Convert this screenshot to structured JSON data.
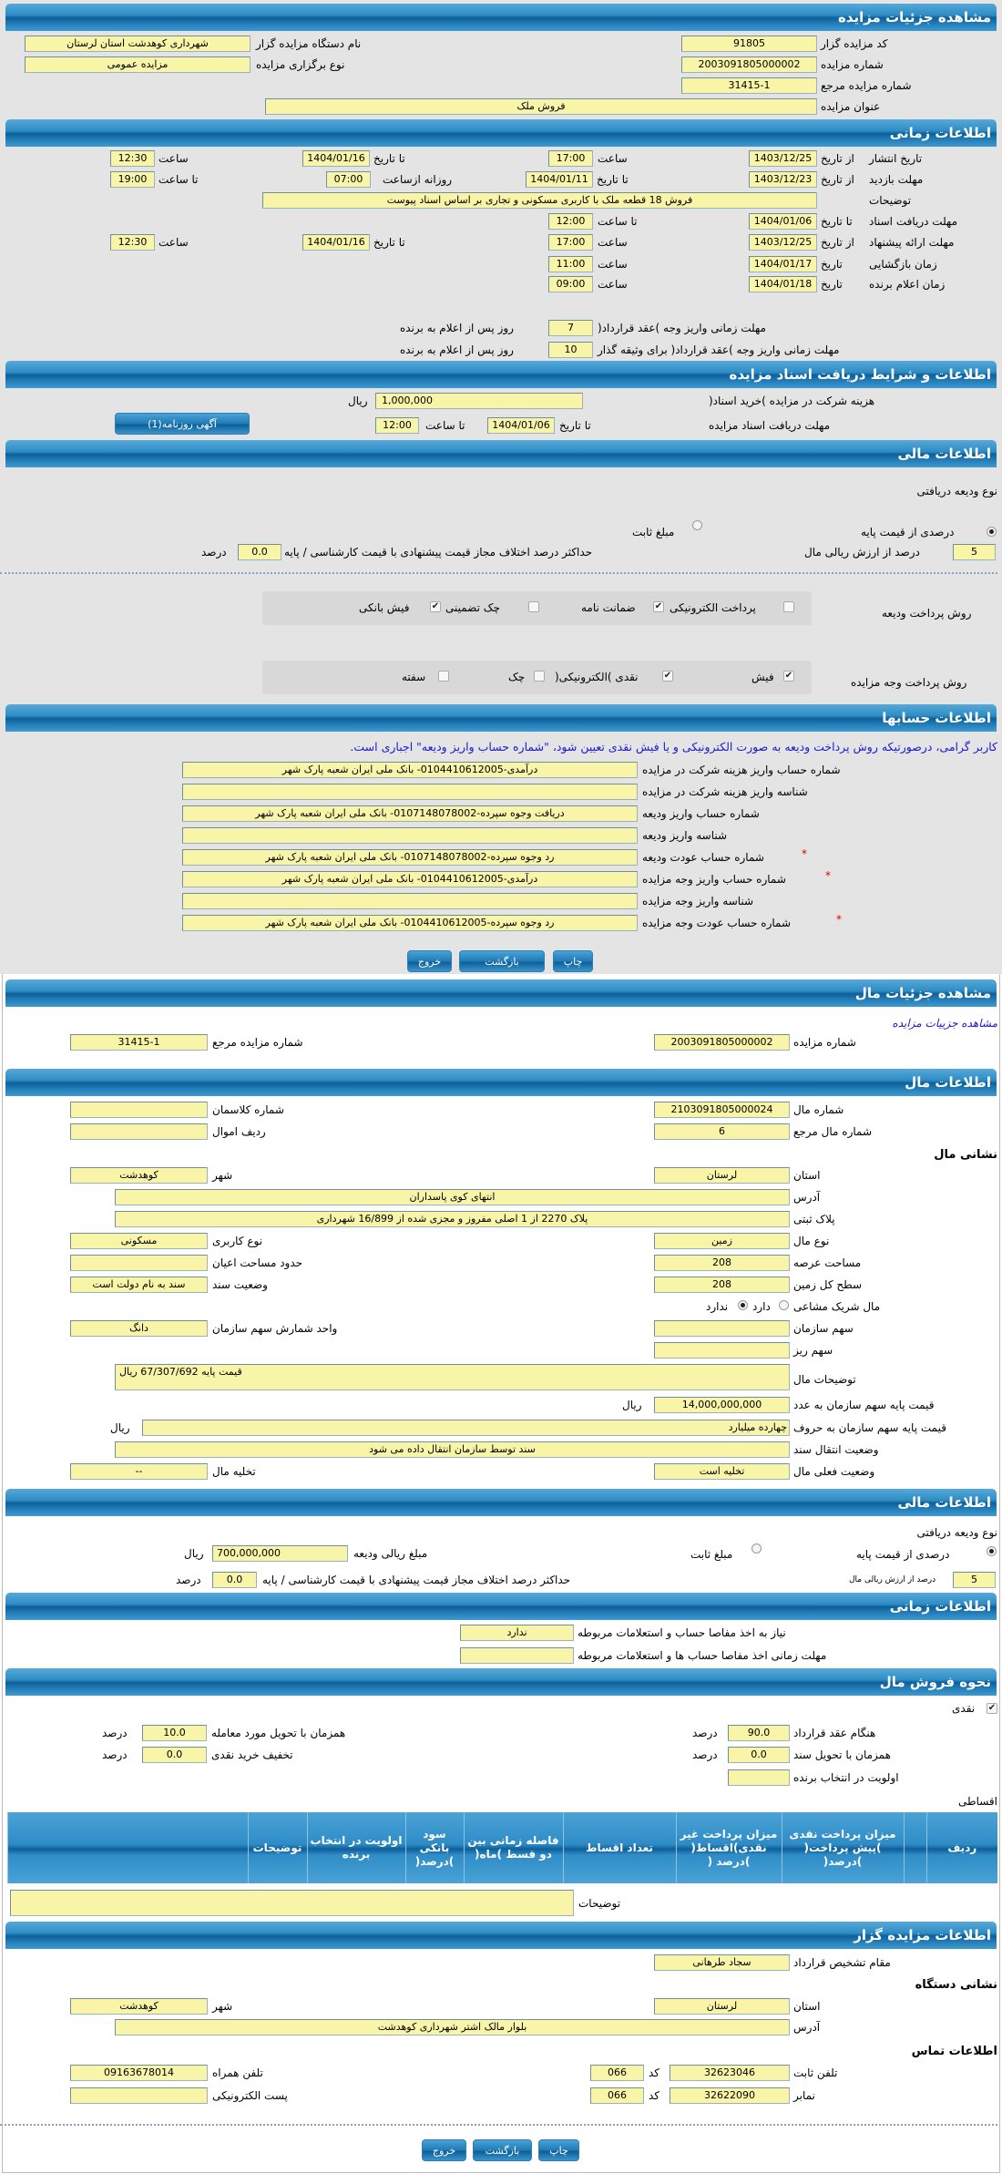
{
  "colors": {
    "header": "#1f78b3",
    "field": "#f8f4a8",
    "background": "#e4e4e4",
    "note": "#1a1ad0"
  },
  "s1": {
    "title": "مشاهده جزئیات مزایده",
    "code_label": "کد مزایده گزار",
    "code": "91805",
    "org_label": "نام دستگاه مزایده گزار",
    "org": "شهرداری کوهدشت استان لرستان",
    "num_label": "شماره مزایده",
    "num": "2003091805000002",
    "type_label": "نوع برگزاری مزایده",
    "type": "مزایده عمومی",
    "ref_label": "شماره مزایده مرجع",
    "ref": "31415-1",
    "subject_label": "عنوان مزایده",
    "subject": "فروش ملک"
  },
  "time": {
    "title": "اطلاعات زمانی",
    "from_date": "از تاریخ",
    "to_date": "تا تاریخ",
    "hour": "ساعت",
    "to_hour": "تا ساعت",
    "date": "تاریخ",
    "daily_from": "روزانه ازساعت",
    "publish_label": "تاریخ انتشار",
    "publish_from": "1403/12/25",
    "publish_from_time": "17:00",
    "publish_to": "1404/01/16",
    "publish_to_time": "12:30",
    "visit_label": "مهلت بازدید",
    "visit_from": "1403/12/23",
    "visit_to": "1404/01/11",
    "visit_daily_from": "07:00",
    "visit_daily_to": "19:00",
    "desc_label": "توضیحات",
    "desc": "فروش 18 قطعه ملک با کاربری مسکونی و تجاری بر اساس اسناد پیوست",
    "docs_label": "مهلت دریافت اسناد",
    "docs_to": "1404/01/06",
    "docs_to_time": "12:00",
    "offer_label": "مهلت ارائه پیشنهاد",
    "offer_from": "1403/12/25",
    "offer_from_time": "17:00",
    "offer_to": "1404/01/16",
    "offer_to_time": "12:30",
    "open_label": "زمان بازگشایی",
    "open_date": "1404/01/17",
    "open_time": "11:00",
    "winner_label": "زمان اعلام برنده",
    "winner_date": "1404/01/18",
    "winner_time": "09:00",
    "pay1_label": "مهلت زمانی واریز وجه )عقد قرارداد(",
    "pay1": "7",
    "pay2_label": "مهلت زمانی واریز وجه )عقد قرارداد( برای وثیقه گذار",
    "pay2": "10",
    "days_suffix": "روز پس از اعلام به برنده"
  },
  "docs": {
    "title": "اطلاعات و شرایط دریافت اسناد مزایده",
    "fee_label": "هزینه شرکت در مزایده )خرید اسناد(",
    "fee": "1,000,000",
    "rial": "ریال",
    "deadline_label": "مهلت دریافت اسناد مزایده",
    "to_date": "تا تاریخ",
    "date": "1404/01/06",
    "to_hour": "تا ساعت",
    "time": "12:00",
    "ad_button": "آگهی روزنامه(1)"
  },
  "fin": {
    "title": "اطلاعات مالی",
    "deposit_type": "نوع ودیعه دریافتی",
    "opt_percent": "درصدی از قیمت پایه",
    "opt_fixed": "مبلغ ثابت",
    "percent": "5",
    "percent_label": "درصد از ارزش ریالی مال",
    "max_diff_label": "حداکثر درصد اختلاف مجاز قیمت پیشنهادی با قیمت کارشناسی / پایه",
    "max_diff": "0.0",
    "percent_word": "درصد",
    "deposit_pay_label": "روش پرداخت ودیعه",
    "dp": [
      {
        "label": "پرداخت الکترونیکی",
        "checked": false
      },
      {
        "label": "ضمانت نامه",
        "checked": true
      },
      {
        "label": "چک تضمینی",
        "checked": false
      },
      {
        "label": "فیش بانکی",
        "checked": true
      }
    ],
    "auction_pay_label": "روش پرداخت وجه مزایده",
    "ap": [
      {
        "label": "فیش",
        "checked": true
      },
      {
        "label": "نقدی )الکترونیکی(",
        "checked": true
      },
      {
        "label": "چک",
        "checked": false
      },
      {
        "label": "سفته",
        "checked": false
      }
    ]
  },
  "acc": {
    "title": "اطلاعات حسابها",
    "note": "کاربر گرامی، درصورتیکه روش پرداخت ودیعه به صورت الکترونیکی و یا فیش نقدی تعیین شود، \"شماره حساب واریز ودیعه\" اجباری است.",
    "rows": [
      {
        "label": "شماره حساب واریز هزینه شرکت در مزایده",
        "value": "درآمدی-0104410612005- بانک ملی ایران شعبه پارک شهر"
      },
      {
        "label": "شناسه واریز هزینه شرکت در مزایده",
        "value": ""
      },
      {
        "label": "شماره حساب واریز ودیعه",
        "value": "دریافت وجوه سپرده-0107148078002- بانک ملی ایران شعبه پارک شهر"
      },
      {
        "label": "شناسه واریز ودیعه",
        "value": ""
      },
      {
        "label": "شماره حساب عودت ودیعه",
        "value": "رد وجوه سپرده-0107148078002- بانک ملی ایران شعبه پارک شهر"
      },
      {
        "label": "شماره حساب واریز وجه مزایده",
        "value": "درآمدی-0104410612005- بانک ملی ایران شعبه پارک شهر"
      },
      {
        "label": "شناسه واریز وجه مزایده",
        "value": ""
      },
      {
        "label": "شماره حساب عودت وجه مزایده",
        "value": "رد وجوه سپرده-0104410612005- بانک ملی ایران شعبه پارک شهر"
      }
    ],
    "required": "*",
    "print": "چاپ",
    "back": "بازگشت",
    "exit": "خروج"
  },
  "item": {
    "title": "مشاهده جزئیات مال",
    "link": "مشاهده جزییات مزایده",
    "num_label": "شماره مزایده",
    "num": "2003091805000002",
    "ref_label": "شماره مزایده مرجع",
    "ref": "31415-1",
    "info_title": "اطلاعات مال",
    "item_no_label": "شماره مال",
    "item_no": "2103091805000024",
    "class_label": "شماره کلاسمان",
    "class": "",
    "item_ref_label": "شماره مال مرجع",
    "item_ref": "6",
    "row_label": "ردیف اموال",
    "row": "",
    "address_title": "نشانی مال",
    "province_label": "استان",
    "province": "لرستان",
    "city_label": "شهر",
    "city": "کوهدشت",
    "address_label": "آدرس",
    "address": "انتهای کوی پاسداران",
    "plate_label": "پلاک ثبتی",
    "plate": "پلاک 2270 از 1 اصلی مفروز و مجزی شده از  16/899 شهرداری",
    "kind_label": "نوع مال",
    "kind": "زمین",
    "usage_label": "نوع کاربری",
    "usage": "مسکونی",
    "area_label": "مساحت عرصه",
    "area": "208",
    "building_label": "حدود مساحت اعیان",
    "building": "",
    "land_label": "سطح کل زمین",
    "land": "208",
    "deed_label": "وضعیت سند",
    "deed": "سند به نام دولت است",
    "shared_label": "مال شریک مشاعی",
    "has": "دارد",
    "has_not": "ندارد",
    "share_label": "سهم سازمان",
    "share": "",
    "share_unit_label": "واحد شمارش سهم سازمان",
    "share_unit": "دانگ",
    "sub_share_label": "سهم ریز",
    "sub_share": "",
    "desc_label": "توضیحات مال",
    "desc": "قیمت پایه 67/307/692 ریال",
    "price_num_label": "قیمت پایه سهم سازمان به عدد",
    "price_num": "14,000,000,000",
    "rial": "ریال",
    "price_words_label": "قیمت پایه سهم سازمان به حروف",
    "price_words": "چهارده میلیارد",
    "transfer_label": "وضعیت انتقال سند",
    "transfer": "سند توسط سازمان انتقال داده می شود",
    "status_label": "وضعیت فعلی مال",
    "status": "تخلیه است",
    "evac_label": "تخلیه مال",
    "evac": "--"
  },
  "ifin": {
    "title": "اطلاعات مالی",
    "deposit_type": "نوع ودیعه دریافتی",
    "opt_percent": "درصدی از قیمت پایه",
    "opt_fixed": "مبلغ ثابت",
    "amount_label": "مبلغ ریالی ودیعه",
    "amount": "700,000,000",
    "rial": "ریال",
    "percent": "5",
    "percent_label": "درصد از ارزش ریالی مال",
    "max_diff_label": "حداکثر درصد اختلاف مجاز قیمت پیشنهادی با قیمت کارشناسی / پایه",
    "max_diff": "0.0",
    "percent_word": "درصد"
  },
  "itime": {
    "title": "اطلاعات زمانی",
    "need_label": "نیاز به اخذ مفاصا حساب و استعلامات مربوطه",
    "need": "ندارد",
    "deadline_label": "مهلت زمانی اخذ مفاصا حساب ها و استعلامات مربوطه",
    "deadline": ""
  },
  "sale": {
    "title": "نحوه فروش مال",
    "cash": "نقدی",
    "contract_label": "هنگام عقد قرارداد",
    "contract": "90.0",
    "deed_label": "همزمان با تحویل سند",
    "deed": "0.0",
    "priority_label": "اولویت در انتخاب برنده",
    "priority": "",
    "delivery_label": "همزمان با تحویل مورد معامله",
    "delivery": "10.0",
    "discount_label": "تخفیف خرید نقدی",
    "discount": "0.0",
    "percent_word": "درصد",
    "installments": "اقساطی",
    "columns": [
      "ردیف",
      "",
      "میزان پرداخت نقدی )پیش پرداخت( )درصد(",
      "میزان پرداخت غیر نقدی)اقساط( )درصد (",
      "تعداد اقساط",
      "فاصله زمانی بین دو قسط )ماه(",
      "سود بانکی )درصد(",
      "اولویت در انتخاب برنده",
      "توضیحات",
      ""
    ],
    "desc_label": "توضیحات",
    "desc": ""
  },
  "seller": {
    "title": "اطلاعات مزایده گزار",
    "authority_label": "مقام تشخیص قرارداد",
    "authority": "سجاد طرهانی",
    "org_address": "نشانی دستگاه",
    "province_label": "استان",
    "province": "لرستان",
    "city_label": "شهر",
    "city": "کوهدشت",
    "address_label": "آدرس",
    "address": "بلوار مالک اشتر شهرداری کوهدشت",
    "contact": "اطلاعات تماس",
    "phone_label": "تلفن ثابت",
    "phone": "32623046",
    "code_label": "کد",
    "phone_code": "066",
    "mobile_label": "تلفن همراه",
    "mobile": "09163678014",
    "fax_label": "نمابر",
    "fax": "32622090",
    "fax_code": "066",
    "email_label": "پست الکترونیکی",
    "email": "",
    "print": "چاپ",
    "back": "بازگشت",
    "exit": "خروج"
  }
}
